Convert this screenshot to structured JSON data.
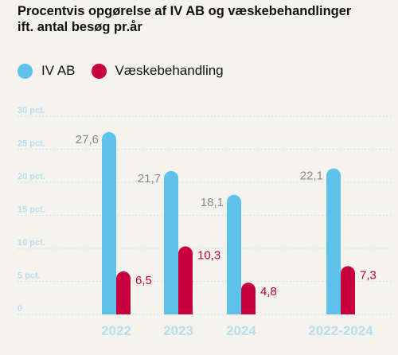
{
  "title_line1": "Procentvis opgørelse af IV AB og væskebehandlinger",
  "title_line2": "ift. antal besøg pr.år",
  "colors": {
    "iv_ab": "#5ec2ea",
    "vaske": "#c8003c",
    "axis_text": "#b8ddf0",
    "grid": "#ccd9e2",
    "value_iv": "#8a8a8a"
  },
  "chart_data": {
    "type": "bar",
    "categories": [
      "2022",
      "2023",
      "2024",
      "2022-2024"
    ],
    "series": [
      {
        "name": "IV AB",
        "values": [
          27.6,
          21.7,
          18.1,
          22.1
        ],
        "labels": [
          "27,6",
          "21,7",
          "18,1",
          "22,1"
        ]
      },
      {
        "name": "Væskebehandling",
        "values": [
          6.5,
          10.3,
          4.8,
          7.3
        ],
        "labels": [
          "6,5",
          "10,3",
          "4,8",
          "7,3"
        ]
      }
    ],
    "ylim": [
      0,
      30
    ],
    "yticks": [
      0,
      5,
      10,
      15,
      20,
      25,
      30
    ],
    "ytick_labels": [
      "0",
      "5 pct.",
      "10 pct.",
      "15 pct.",
      "20 pct.",
      "25 pct.",
      "30 pct."
    ],
    "grid": true,
    "legend_position": "top-left"
  }
}
